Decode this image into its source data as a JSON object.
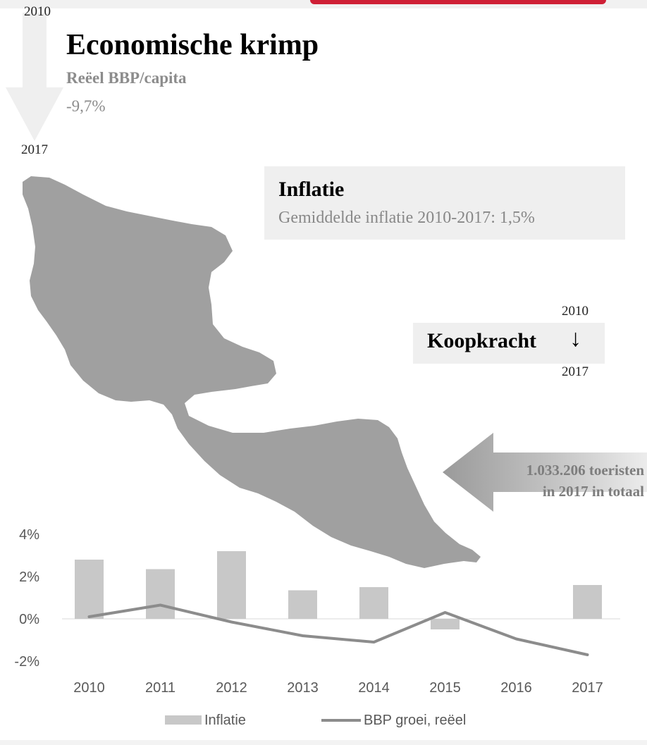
{
  "header": {
    "title": "Economische krimp",
    "subtitle": "Reëel BBP/capita",
    "value": "-9,7%",
    "year_start": "2010",
    "year_end": "2017"
  },
  "inflation_box": {
    "title": "Inflatie",
    "subtitle": "Gemiddelde inflatie 2010-2017: 1,5%"
  },
  "purchasing_power": {
    "label": "Koopkracht",
    "arrow": "↓",
    "year_start": "2010",
    "year_end": "2017"
  },
  "tourists": {
    "line1": "1.033.206 toeristen",
    "line2": "in 2017 in totaal"
  },
  "colors": {
    "bar": "#c8c8c8",
    "line": "#8c8c8c",
    "island": "#a0a0a0",
    "box": "#efefef",
    "accent": "#cf2036"
  },
  "chart_data": {
    "type": "bar",
    "categories": [
      "2010",
      "2011",
      "2012",
      "2013",
      "2014",
      "2015",
      "2016",
      "2017"
    ],
    "series": [
      {
        "name": "Inflatie",
        "type": "bar",
        "values": [
          2.8,
          2.35,
          3.2,
          1.35,
          1.5,
          -0.5,
          0.0,
          1.6
        ]
      },
      {
        "name": "BBP groei, reëel",
        "type": "line",
        "values": [
          0.1,
          0.65,
          -0.15,
          -0.8,
          -1.1,
          0.3,
          -0.95,
          -1.7
        ]
      }
    ],
    "yticks": [
      "4%",
      "2%",
      "0%",
      "-2%"
    ],
    "ytick_values": [
      4,
      2,
      0,
      -2
    ],
    "ylim": [
      -2,
      4
    ],
    "grid": false,
    "legend_position": "bottom"
  }
}
